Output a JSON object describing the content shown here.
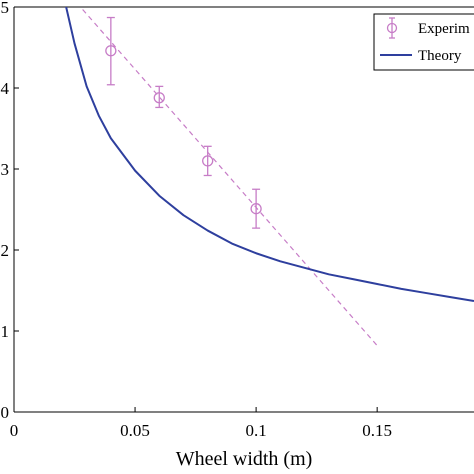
{
  "chart_data": {
    "type": "line",
    "title": "",
    "xlabel": "Wheel width (m)",
    "ylabel": "",
    "xlim": [
      0,
      0.19
    ],
    "ylim": [
      0,
      5
    ],
    "x_ticks": [
      {
        "value": 0,
        "label": "0"
      },
      {
        "value": 0.05,
        "label": "0.05"
      },
      {
        "value": 0.1,
        "label": "0.1"
      },
      {
        "value": 0.15,
        "label": "0.15"
      }
    ],
    "y_ticks": [
      {
        "value": 0,
        "label": "0"
      },
      {
        "value": 1,
        "label": "1"
      },
      {
        "value": 2,
        "label": "2"
      },
      {
        "value": 3,
        "label": "3"
      },
      {
        "value": 4,
        "label": "4"
      },
      {
        "value": 5,
        "label": "5"
      }
    ],
    "grid": false,
    "legend": {
      "placement": "top-right",
      "entries": [
        {
          "label": "Experim",
          "series": "experiment"
        },
        {
          "label": "Theory",
          "series": "theory"
        }
      ]
    },
    "series": [
      {
        "key": "experiment",
        "kind": "errorbar",
        "color": "#c77dc7",
        "x": [
          0.04,
          0.06,
          0.08,
          0.1
        ],
        "y": [
          4.46,
          3.88,
          3.1,
          2.51
        ],
        "err_low": [
          0.42,
          0.12,
          0.18,
          0.24
        ],
        "err_high": [
          0.41,
          0.14,
          0.18,
          0.24
        ]
      },
      {
        "key": "experiment-fit",
        "kind": "dashed-line",
        "color": "#c77dc7",
        "x": [
          0.021,
          0.15
        ],
        "y": [
          5.22,
          0.82
        ]
      },
      {
        "key": "theory",
        "kind": "line",
        "color": "#2e3f9e",
        "x": [
          0.02,
          0.025,
          0.03,
          0.035,
          0.04,
          0.05,
          0.06,
          0.07,
          0.08,
          0.09,
          0.1,
          0.11,
          0.12,
          0.13,
          0.14,
          0.15,
          0.16,
          0.17,
          0.18,
          0.19
        ],
        "y": [
          5.2,
          4.55,
          4.02,
          3.66,
          3.38,
          2.98,
          2.67,
          2.43,
          2.24,
          2.08,
          1.96,
          1.86,
          1.78,
          1.7,
          1.64,
          1.58,
          1.52,
          1.47,
          1.42,
          1.37
        ]
      }
    ]
  }
}
